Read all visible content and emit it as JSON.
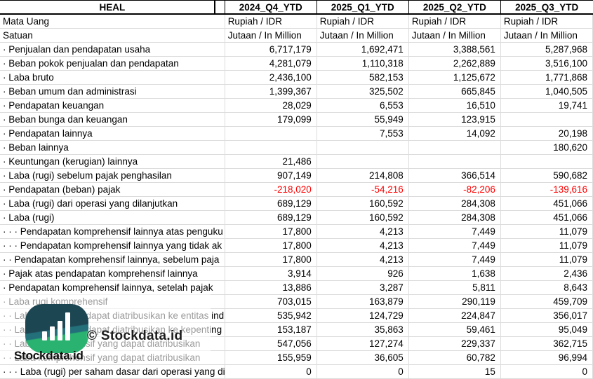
{
  "table": {
    "corner_label": "HEAL",
    "columns": [
      "2024_Q4_YTD",
      "2025_Q1_YTD",
      "2025_Q2_YTD",
      "2025_Q3_YTD"
    ],
    "meta_rows": [
      {
        "label": "Mata Uang",
        "values": [
          "Rupiah / IDR",
          "Rupiah / IDR",
          "Rupiah / IDR",
          "Rupiah / IDR"
        ]
      },
      {
        "label": "Satuan",
        "values": [
          "Jutaan / In Million",
          "Jutaan / In Million",
          "Jutaan / In Million",
          "Jutaan / In Million"
        ]
      }
    ],
    "rows": [
      {
        "label": "· Penjualan dan pendapatan usaha",
        "values": [
          "6,717,179",
          "1,692,471",
          "3,388,561",
          "5,287,968"
        ]
      },
      {
        "label": "· Beban pokok penjualan dan pendapatan",
        "values": [
          "4,281,079",
          "1,110,318",
          "2,262,889",
          "3,516,100"
        ]
      },
      {
        "label": "· Laba bruto",
        "values": [
          "2,436,100",
          "582,153",
          "1,125,672",
          "1,771,868"
        ]
      },
      {
        "label": "· Beban umum dan administrasi",
        "values": [
          "1,399,367",
          "325,502",
          "665,845",
          "1,040,505"
        ]
      },
      {
        "label": "· Pendapatan keuangan",
        "values": [
          "28,029",
          "6,553",
          "16,510",
          "19,741"
        ]
      },
      {
        "label": "· Beban bunga dan keuangan",
        "values": [
          "179,099",
          "55,949",
          "123,915",
          ""
        ]
      },
      {
        "label": "· Pendapatan lainnya",
        "values": [
          "",
          "7,553",
          "14,092",
          "20,198"
        ]
      },
      {
        "label": "· Beban lainnya",
        "values": [
          "",
          "",
          "",
          "180,620"
        ]
      },
      {
        "label": "· Keuntungan (kerugian) lainnya",
        "values": [
          "21,486",
          "",
          "",
          ""
        ]
      },
      {
        "label": "· Laba (rugi) sebelum pajak penghasilan",
        "values": [
          "907,149",
          "214,808",
          "366,514",
          "590,682"
        ]
      },
      {
        "label": "· Pendapatan (beban) pajak",
        "values": [
          "-218,020",
          "-54,216",
          "-82,206",
          "-139,616"
        ]
      },
      {
        "label": "· Laba (rugi) dari operasi yang dilanjutkan",
        "values": [
          "689,129",
          "160,592",
          "284,308",
          "451,066"
        ]
      },
      {
        "label": "· Laba (rugi)",
        "values": [
          "689,129",
          "160,592",
          "284,308",
          "451,066"
        ]
      },
      {
        "label": "· · · Pendapatan komprehensif lainnya atas penguku",
        "values": [
          "17,800",
          "4,213",
          "7,449",
          "11,079"
        ]
      },
      {
        "label": "· · · Pendapatan komprehensif lainnya yang tidak ak",
        "values": [
          "17,800",
          "4,213",
          "7,449",
          "11,079"
        ]
      },
      {
        "label": "· · Pendapatan komprehensif lainnya, sebelum paja",
        "values": [
          "17,800",
          "4,213",
          "7,449",
          "11,079"
        ]
      },
      {
        "label": "· Pajak atas pendapatan komprehensif lainnya",
        "values": [
          "3,914",
          "926",
          "1,638",
          "2,436"
        ]
      },
      {
        "label": "· Pendapatan komprehensif lainnya, setelah pajak",
        "values": [
          "13,886",
          "3,287",
          "5,811",
          "8,643"
        ]
      },
      {
        "label": "· Laba rugi komprehensif",
        "values": [
          "703,015",
          "163,879",
          "290,119",
          "459,709"
        ]
      },
      {
        "label": "· · Laba (rugi) yang dapat diatribusikan ke entitas ind",
        "values": [
          "535,942",
          "124,729",
          "224,847",
          "356,017"
        ]
      },
      {
        "label": "· · Laba (rugi) yang dapat diatribusikan ke kepenting",
        "values": [
          "153,187",
          "35,863",
          "59,461",
          "95,049"
        ]
      },
      {
        "label": "· · Laba komprehensif yang dapat diatribusikan",
        "values": [
          "547,056",
          "127,274",
          "229,337",
          "362,715"
        ]
      },
      {
        "label": "· · Laba komprehensif yang dapat diatribusikan",
        "values": [
          "155,959",
          "36,605",
          "60,782",
          "96,994"
        ]
      },
      {
        "label": "· · · Laba (rugi) per saham dasar dari operasi yang dil",
        "values": [
          "0",
          "0",
          "15",
          "0"
        ]
      }
    ]
  },
  "watermark": {
    "copyright": "© Stockdata.id",
    "brand": "Stockdata.id"
  },
  "colors": {
    "negative": "#ff0000",
    "grid": "#dcdcdc",
    "header_border": "#000000",
    "logo_dark": "#1d4653",
    "logo_teal": "#23707a",
    "logo_green": "#29b270"
  }
}
